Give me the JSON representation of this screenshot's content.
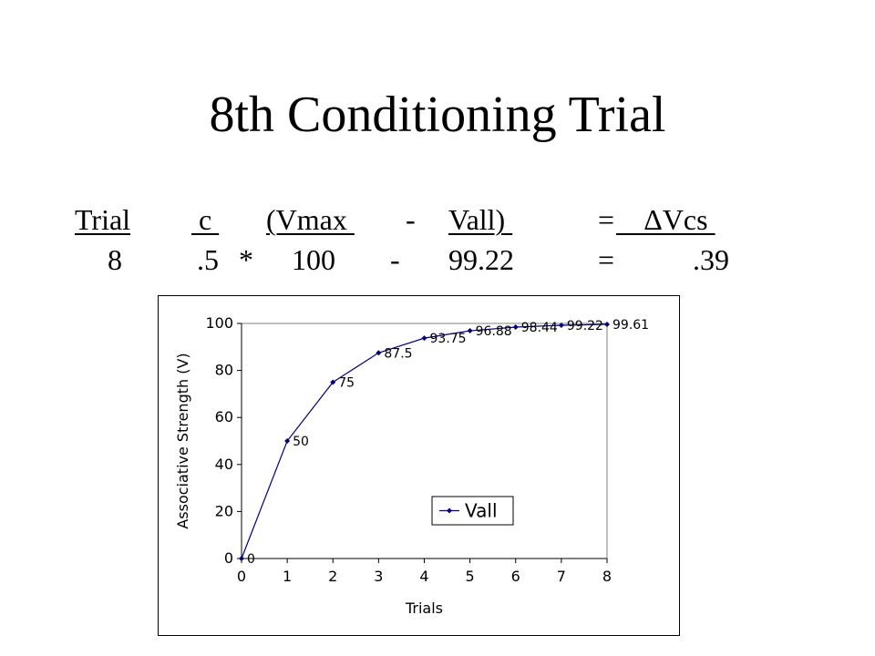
{
  "slide": {
    "title": "8th Conditioning Trial"
  },
  "formula": {
    "header": {
      "trial": "Trial",
      "c": " c ",
      "vmax": "(Vmax ",
      "minus": "-",
      "vall": "Vall) ",
      "equals": "=",
      "dvcs": "    ΔVcs "
    },
    "values": {
      "trial": "8",
      "c": ".5",
      "times": "*",
      "vmax": "100",
      "minus": "-",
      "vall": "99.22",
      "equals": "=",
      "dvcs": ".39"
    }
  },
  "chart_data": {
    "type": "line",
    "x": [
      0,
      1,
      2,
      3,
      4,
      5,
      6,
      7,
      8
    ],
    "series": [
      {
        "name": "Vall",
        "values": [
          0,
          50,
          75,
          87.5,
          93.75,
          96.88,
          98.44,
          99.22,
          99.61
        ],
        "labels": [
          "0",
          "50",
          "75",
          "87.5",
          "93.75",
          "96.88",
          "98.44",
          "99.22",
          "99.61"
        ],
        "color": "#000080"
      }
    ],
    "xlabel": "Trials",
    "ylabel": "Associative Strength (V)",
    "xlim": [
      0,
      8
    ],
    "ylim": [
      0,
      100
    ],
    "xticks": [
      "0",
      "1",
      "2",
      "3",
      "4",
      "5",
      "6",
      "7",
      "8"
    ],
    "yticks": [
      "0",
      "20",
      "40",
      "60",
      "80",
      "100"
    ],
    "legend": "center-right",
    "grid": false
  }
}
